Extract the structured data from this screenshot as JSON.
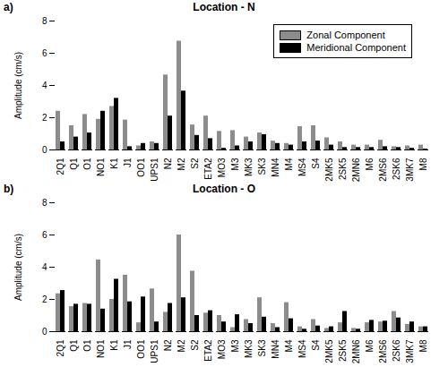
{
  "chart_data": [
    {
      "type": "bar",
      "title": "Location - N",
      "annotations": [
        "a)"
      ],
      "y_label": "Amplitude (cm/s)",
      "categories": [
        "2Q1",
        "Q1",
        "O1",
        "NO1",
        "K1",
        "J1",
        "OO1",
        "UPS1",
        "N2",
        "M2",
        "S2",
        "ETA2",
        "MO3",
        "M3",
        "MK3",
        "SK3",
        "MN4",
        "M4",
        "MS4",
        "S4",
        "2MK5",
        "2SK5",
        "2MN6",
        "M6",
        "2MS6",
        "2SK6",
        "3MK7",
        "M8"
      ],
      "series": [
        {
          "name": "Zonal Component",
          "color": "#8c8c8c",
          "values": [
            2.4,
            1.5,
            2.2,
            1.9,
            2.7,
            1.85,
            0.25,
            0.5,
            4.65,
            6.75,
            1.55,
            2.1,
            1.15,
            1.2,
            0.8,
            1.05,
            0.55,
            0.4,
            1.45,
            1.5,
            0.75,
            0.5,
            0.3,
            0.3,
            0.6,
            0.2,
            0.25,
            0.3
          ]
        },
        {
          "name": "Meridional Component",
          "color": "#000000",
          "values": [
            0.5,
            0.8,
            1.05,
            2.4,
            3.2,
            0.2,
            0.4,
            0.4,
            2.1,
            3.65,
            0.9,
            0.7,
            0.1,
            0.25,
            0.5,
            0.95,
            0.4,
            0.3,
            0.5,
            0.55,
            0.3,
            0.15,
            0.15,
            0.15,
            0.2,
            0.15,
            0.1,
            0.05
          ]
        }
      ],
      "ylim": [
        0,
        8
      ],
      "yticks": [
        0,
        2,
        4,
        6,
        8
      ],
      "legend": "upper right"
    },
    {
      "type": "bar",
      "title": "Location - O",
      "annotations": [
        "b)"
      ],
      "y_label": "Amplitude (cm/s)",
      "categories": [
        "2Q1",
        "Q1",
        "O1",
        "NO1",
        "K1",
        "J1",
        "OO1",
        "UPS1",
        "N2",
        "M2",
        "S2",
        "ETA2",
        "MO3",
        "M3",
        "MK3",
        "SK3",
        "MN4",
        "M4",
        "MS4",
        "S4",
        "2MK5",
        "2SK5",
        "2MN6",
        "M6",
        "2MS6",
        "2SK6",
        "3MK7",
        "M8"
      ],
      "series": [
        {
          "name": "Zonal Component",
          "color": "#8c8c8c",
          "values": [
            2.35,
            1.55,
            1.75,
            4.45,
            2.0,
            3.5,
            0.55,
            2.65,
            1.2,
            6.0,
            3.75,
            1.15,
            1.0,
            0.25,
            0.75,
            2.1,
            0.5,
            1.8,
            0.3,
            0.75,
            0.2,
            0.55,
            0.2,
            0.55,
            0.6,
            1.25,
            0.45,
            0.3
          ]
        },
        {
          "name": "Meridional Component",
          "color": "#000000",
          "values": [
            2.55,
            1.7,
            1.7,
            1.4,
            3.25,
            1.85,
            2.15,
            0.6,
            1.75,
            2.1,
            1.0,
            1.3,
            0.6,
            1.05,
            0.5,
            0.9,
            0.25,
            0.8,
            0.15,
            0.35,
            0.3,
            1.25,
            0.15,
            0.7,
            0.65,
            0.85,
            0.6,
            0.3
          ]
        }
      ],
      "ylim": [
        0,
        8
      ],
      "yticks": [
        0,
        2,
        4,
        6,
        8
      ]
    }
  ]
}
